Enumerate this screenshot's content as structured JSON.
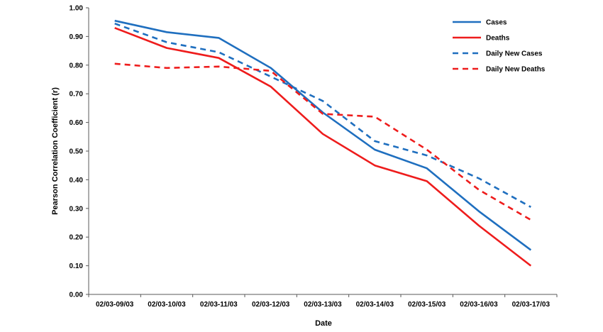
{
  "chart_data": {
    "type": "line",
    "title": "",
    "xlabel": "Date",
    "ylabel": "Pearson Correlation Coefficient (r)",
    "ylim": [
      0,
      1
    ],
    "yticks": [
      "0.00",
      "0.10",
      "0.20",
      "0.30",
      "0.40",
      "0.50",
      "0.60",
      "0.70",
      "0.80",
      "0.90",
      "1.00"
    ],
    "categories": [
      "02/03-09/03",
      "02/03-10/03",
      "02/03-11/03",
      "02/03-12/03",
      "02/03-13/03",
      "02/03-14/03",
      "02/03-15/03",
      "02/03-16/03",
      "02/03-17/03"
    ],
    "grid": false,
    "legend_position": "top-right",
    "series": [
      {
        "name": "Cases",
        "color": "#1f6fbf",
        "dashed": false,
        "values": [
          0.955,
          0.915,
          0.895,
          0.79,
          0.635,
          0.505,
          0.44,
          0.29,
          0.155
        ]
      },
      {
        "name": "Deaths",
        "color": "#ee1c1c",
        "dashed": false,
        "values": [
          0.93,
          0.86,
          0.825,
          0.725,
          0.56,
          0.45,
          0.395,
          0.24,
          0.1
        ]
      },
      {
        "name": "Daily New Cases",
        "color": "#1f6fbf",
        "dashed": true,
        "values": [
          0.945,
          0.88,
          0.845,
          0.76,
          0.675,
          0.535,
          0.485,
          0.405,
          0.305
        ]
      },
      {
        "name": "Daily New Deaths",
        "color": "#ee1c1c",
        "dashed": true,
        "values": [
          0.805,
          0.79,
          0.795,
          0.78,
          0.63,
          0.62,
          0.505,
          0.365,
          0.26
        ]
      }
    ]
  }
}
